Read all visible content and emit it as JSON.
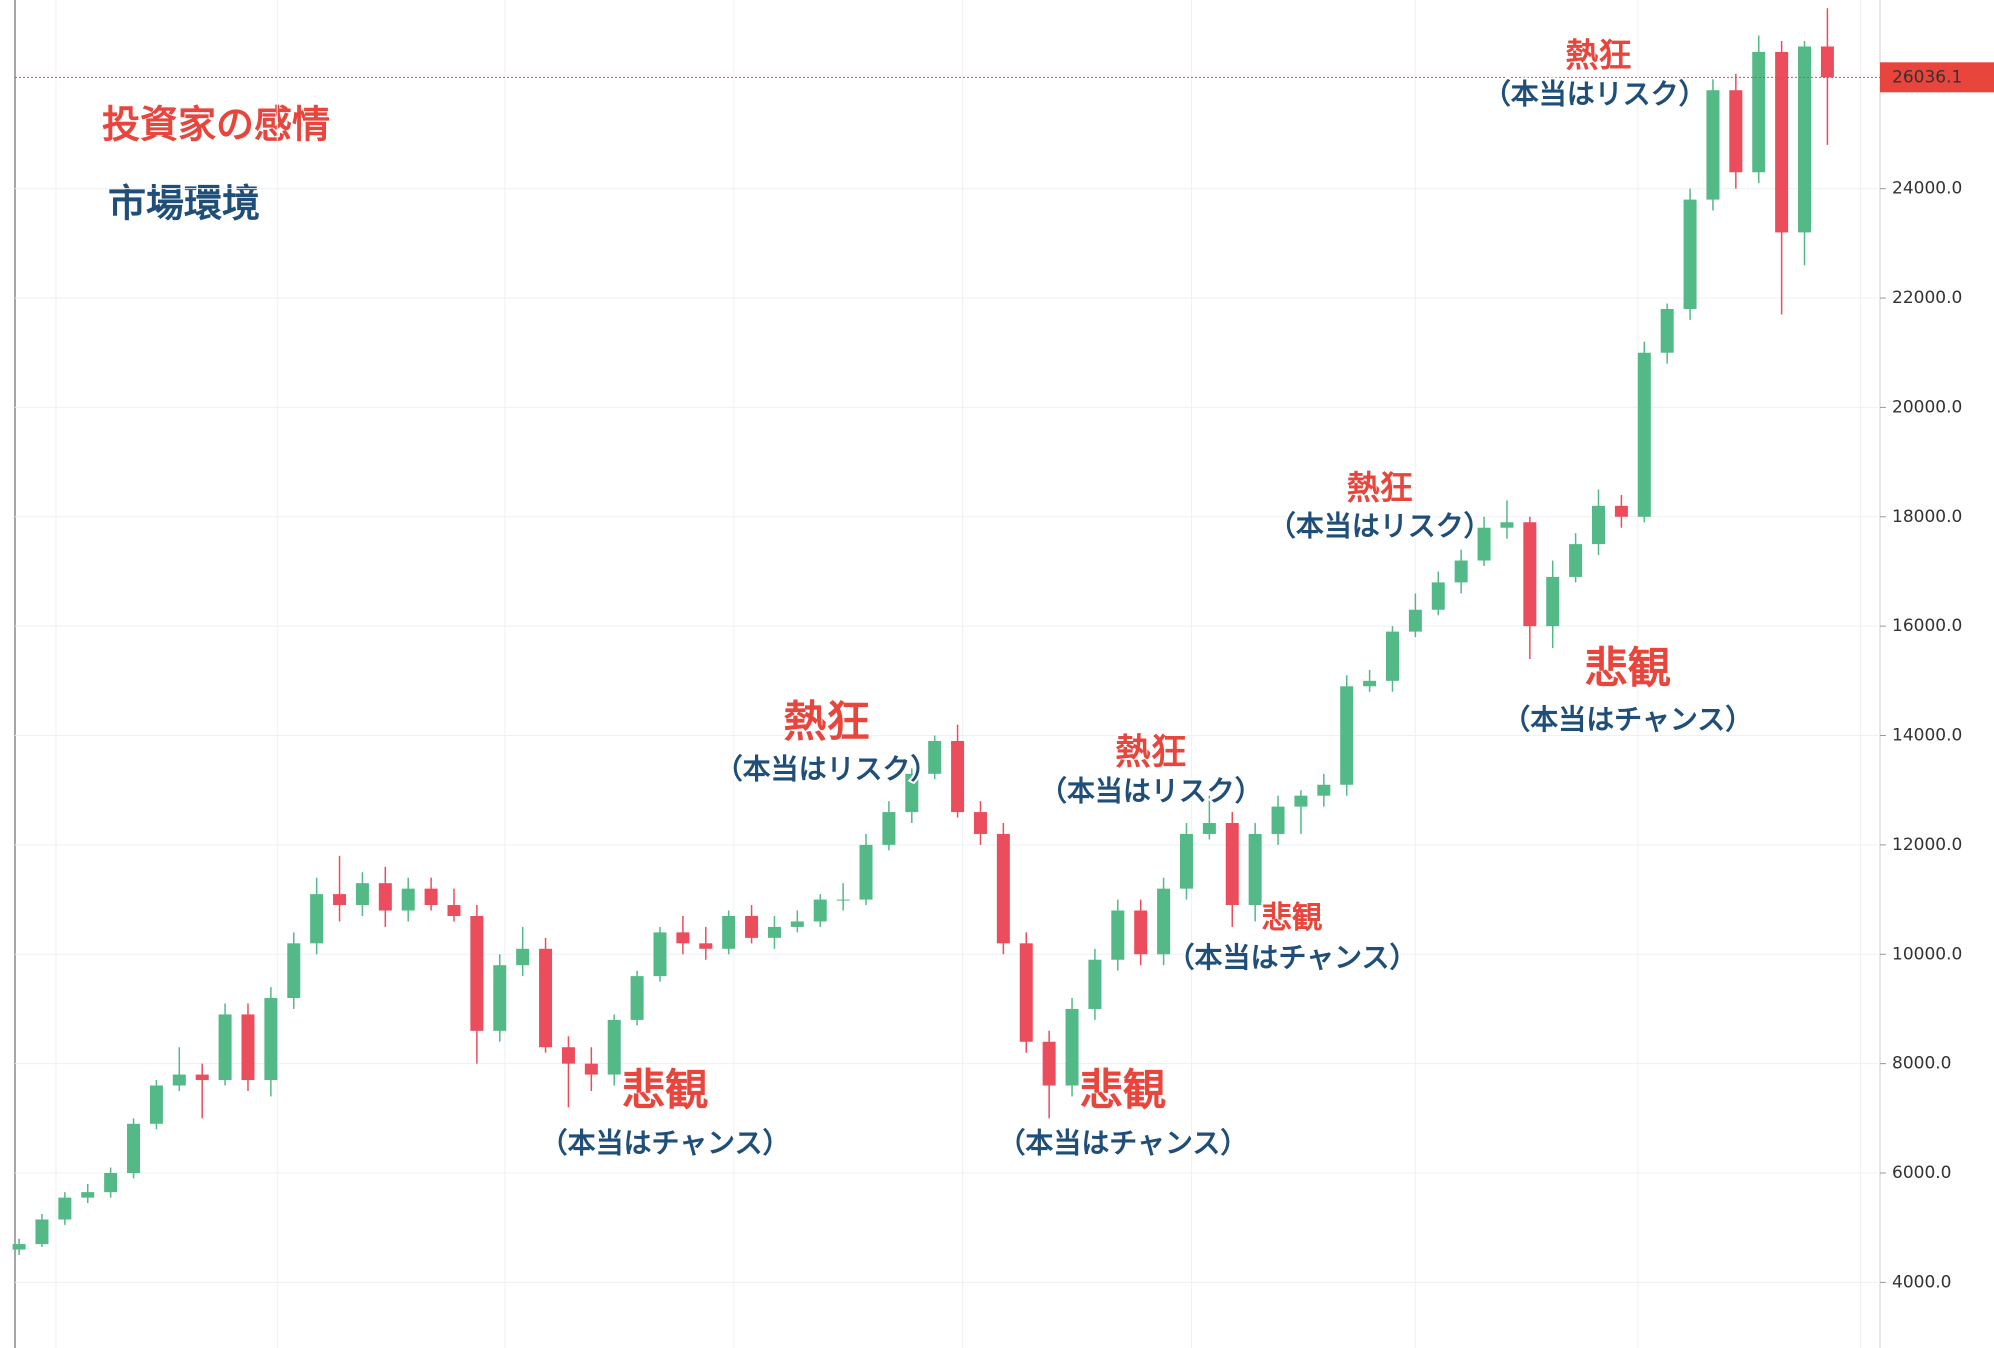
{
  "chart_data": {
    "type": "candlestick",
    "title": "投資家の感情",
    "subtitle": "市場環境",
    "up_color": "#53b987",
    "down_color": "#eb4d5c",
    "title_color": "#e8453c",
    "subtitle_color": "#1f4e79",
    "open": [
      4600,
      4700,
      5150,
      5550,
      5650,
      6000,
      6900,
      7600,
      7800,
      7700,
      8900,
      7700,
      9200,
      10200,
      11100,
      10900,
      11300,
      10800,
      11200,
      10900,
      10700,
      8600,
      9800,
      10100,
      8300,
      8000,
      7800,
      8800,
      9600,
      10400,
      10200,
      10100,
      10700,
      10300,
      10500,
      10600,
      11000,
      11000,
      12000,
      12600,
      13300,
      13900,
      12600,
      12200,
      10200,
      8400,
      7600,
      9000,
      9900,
      10800,
      10000,
      11200,
      12200,
      12400,
      10900,
      12200,
      12700,
      12900,
      13100,
      14900,
      15000,
      15900,
      16300,
      16800,
      17200,
      17800,
      17900,
      16000,
      16900,
      17500,
      18200,
      18000,
      21000,
      21800,
      23800,
      25800,
      24300,
      26500,
      23200,
      26600
    ],
    "high": [
      4800,
      5250,
      5650,
      5800,
      6100,
      7000,
      7700,
      8300,
      8000,
      9100,
      9100,
      9400,
      10400,
      11400,
      11800,
      11500,
      11600,
      11400,
      11400,
      11200,
      10900,
      10000,
      10500,
      10300,
      8500,
      8300,
      8900,
      9700,
      10500,
      10700,
      10500,
      10800,
      10900,
      10700,
      10800,
      11100,
      11300,
      12200,
      12800,
      13400,
      14000,
      14200,
      12800,
      12400,
      10400,
      8600,
      9200,
      10100,
      11000,
      11000,
      11400,
      12400,
      12900,
      12600,
      12400,
      12900,
      13000,
      13300,
      15100,
      15200,
      16000,
      16600,
      17000,
      17400,
      18000,
      18300,
      18000,
      17200,
      17700,
      18500,
      18400,
      21200,
      21900,
      24000,
      26000,
      26100,
      26800,
      26700,
      26700,
      27300
    ],
    "low": [
      4500,
      4650,
      5050,
      5450,
      5550,
      5900,
      6800,
      7500,
      7000,
      7600,
      7500,
      7400,
      9000,
      10000,
      10600,
      10700,
      10500,
      10600,
      10800,
      10600,
      8000,
      8400,
      9600,
      8200,
      7200,
      7500,
      7600,
      8700,
      9500,
      10000,
      9900,
      10000,
      10200,
      10100,
      10400,
      10500,
      10800,
      10900,
      11900,
      12400,
      13200,
      12500,
      12000,
      10000,
      8200,
      7000,
      7400,
      8800,
      9700,
      9800,
      9800,
      11000,
      12100,
      10500,
      10600,
      12000,
      12200,
      12700,
      12900,
      14800,
      14800,
      15800,
      16200,
      16600,
      17100,
      17600,
      15400,
      15600,
      16800,
      17300,
      17800,
      17900,
      20800,
      21600,
      23600,
      24000,
      24100,
      21700,
      22600,
      24800
    ],
    "close": [
      4700,
      5150,
      5550,
      5650,
      6000,
      6900,
      7600,
      7800,
      7700,
      8900,
      7700,
      9200,
      10200,
      11100,
      10900,
      11300,
      10800,
      11200,
      10900,
      10700,
      8600,
      9800,
      10100,
      8300,
      8000,
      7800,
      8800,
      9600,
      10400,
      10200,
      10100,
      10700,
      10300,
      10500,
      10600,
      11000,
      11000,
      12000,
      12600,
      13300,
      13900,
      12600,
      12200,
      10200,
      8400,
      7600,
      9000,
      9900,
      10800,
      10000,
      11200,
      12200,
      12400,
      10900,
      12200,
      12700,
      12900,
      13100,
      14900,
      15000,
      15900,
      16300,
      16800,
      17200,
      17800,
      17900,
      16000,
      16900,
      17500,
      18200,
      18000,
      21000,
      21800,
      23800,
      25800,
      24300,
      26500,
      23200,
      26600,
      26036
    ],
    "ylim": [
      2800,
      27450
    ],
    "yticks": [
      {
        "value": 4000,
        "label": "4000.0"
      },
      {
        "value": 6000,
        "label": "6000.0"
      },
      {
        "value": 8000,
        "label": "8000.0"
      },
      {
        "value": 10000,
        "label": "10000.0"
      },
      {
        "value": 12000,
        "label": "12000.0"
      },
      {
        "value": 14000,
        "label": "14000.0"
      },
      {
        "value": 16000,
        "label": "16000.0"
      },
      {
        "value": 18000,
        "label": "18000.0"
      },
      {
        "value": 20000,
        "label": "20000.0"
      },
      {
        "value": 22000,
        "label": "22000.0"
      },
      {
        "value": 24000,
        "label": "24000.0"
      }
    ],
    "grid": true,
    "last_price": 26036.1,
    "last_price_color": "#e8453c",
    "annotations": [
      {
        "text": "熱狂",
        "color": "#e8453c"
      },
      {
        "text": "（本当はリスク）",
        "color": "#1f4e79"
      },
      {
        "text": "熱狂",
        "color": "#e8453c"
      },
      {
        "text": "（本当はリスク）",
        "color": "#1f4e79"
      },
      {
        "text": "熱狂",
        "color": "#e8453c"
      },
      {
        "text": "（本当はリスク）",
        "color": "#1f4e79"
      },
      {
        "text": "熱狂",
        "color": "#e8453c"
      },
      {
        "text": "（本当はリスク）",
        "color": "#1f4e79"
      },
      {
        "text": "悲観",
        "color": "#e8453c"
      },
      {
        "text": "（本当はチャンス）",
        "color": "#1f4e79"
      },
      {
        "text": "悲観",
        "color": "#e8453c"
      },
      {
        "text": "（本当はチャンス）",
        "color": "#1f4e79"
      },
      {
        "text": "悲観",
        "color": "#e8453c"
      },
      {
        "text": "（本当はチャンス）",
        "color": "#1f4e79"
      },
      {
        "text": "悲観",
        "color": "#e8453c"
      },
      {
        "text": "（本当はチャンス）",
        "color": "#1f4e79"
      }
    ]
  }
}
